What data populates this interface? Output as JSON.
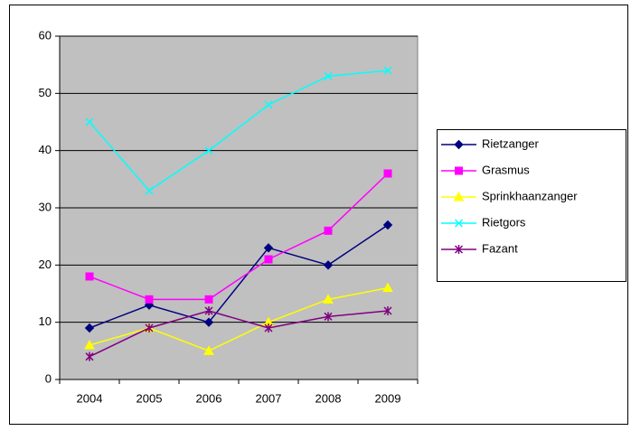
{
  "chart_data": {
    "type": "line",
    "categories": [
      "2004",
      "2005",
      "2006",
      "2007",
      "2008",
      "2009"
    ],
    "series": [
      {
        "name": "Rietzanger",
        "color": "#000080",
        "marker": "diamond",
        "values": [
          9,
          13,
          10,
          23,
          20,
          27
        ]
      },
      {
        "name": "Grasmus",
        "color": "#ff00ff",
        "marker": "square",
        "values": [
          18,
          14,
          14,
          21,
          26,
          36
        ]
      },
      {
        "name": "Sprinkhaanzanger",
        "color": "#ffff00",
        "marker": "triangle",
        "values": [
          6,
          9,
          5,
          10,
          14,
          16
        ]
      },
      {
        "name": "Rietgors",
        "color": "#00ffff",
        "marker": "x",
        "values": [
          45,
          33,
          40,
          48,
          53,
          54
        ]
      },
      {
        "name": "Fazant",
        "color": "#800080",
        "marker": "star",
        "values": [
          4,
          9,
          12,
          9,
          11,
          12
        ]
      }
    ],
    "ylim": [
      0,
      60
    ],
    "yticks": [
      0,
      10,
      20,
      30,
      40,
      50,
      60
    ],
    "grid": true,
    "legend": "right",
    "plot_background": "#c0c0c0"
  }
}
